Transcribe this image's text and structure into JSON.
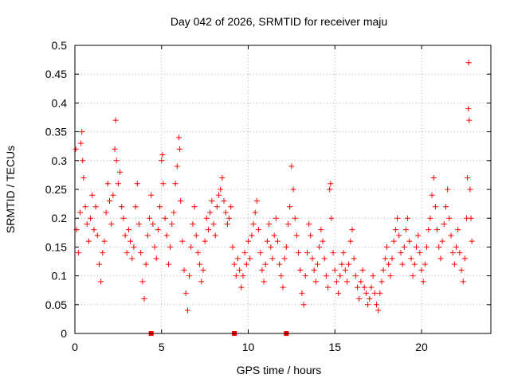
{
  "chart_data": {
    "type": "scatter",
    "title": "Day 042 of 2026, SRMTID for receiver maju",
    "xlabel": "GPS time / hours",
    "ylabel": "SRMTID / TECUs",
    "xlim": [
      0,
      24
    ],
    "ylim": [
      0,
      0.5
    ],
    "xticks": [
      0,
      5,
      10,
      15,
      20
    ],
    "xtick_labels": [
      "0",
      "5",
      "10",
      "15",
      "20"
    ],
    "yticks": [
      0,
      0.05,
      0.1,
      0.15,
      0.2,
      0.25,
      0.3,
      0.35,
      0.4,
      0.45,
      0.5
    ],
    "ytick_labels": [
      "0",
      "0.05",
      "0.1",
      "0.15",
      "0.2",
      "0.25",
      "0.3",
      "0.35",
      "0.4",
      "0.45",
      "0.5"
    ],
    "grid": true,
    "marker": "+",
    "color": "#ff0000",
    "series": [
      {
        "name": "SRMTID",
        "points": [
          [
            0.05,
            0.32
          ],
          [
            0.1,
            0.18
          ],
          [
            0.2,
            0.14
          ],
          [
            0.3,
            0.21
          ],
          [
            0.35,
            0.33
          ],
          [
            0.4,
            0.35
          ],
          [
            0.45,
            0.3
          ],
          [
            0.5,
            0.27
          ],
          [
            0.6,
            0.22
          ],
          [
            0.7,
            0.19
          ],
          [
            0.8,
            0.16
          ],
          [
            0.9,
            0.2
          ],
          [
            1.0,
            0.24
          ],
          [
            1.1,
            0.18
          ],
          [
            1.2,
            0.22
          ],
          [
            1.3,
            0.17
          ],
          [
            1.4,
            0.12
          ],
          [
            1.5,
            0.09
          ],
          [
            1.6,
            0.14
          ],
          [
            1.7,
            0.16
          ],
          [
            1.8,
            0.21
          ],
          [
            1.9,
            0.26
          ],
          [
            2.0,
            0.23
          ],
          [
            2.1,
            0.19
          ],
          [
            2.2,
            0.24
          ],
          [
            2.3,
            0.32
          ],
          [
            2.35,
            0.37
          ],
          [
            2.4,
            0.3
          ],
          [
            2.5,
            0.26
          ],
          [
            2.6,
            0.28
          ],
          [
            2.7,
            0.22
          ],
          [
            2.8,
            0.2
          ],
          [
            2.9,
            0.17
          ],
          [
            3.0,
            0.14
          ],
          [
            3.1,
            0.18
          ],
          [
            3.2,
            0.16
          ],
          [
            3.3,
            0.13
          ],
          [
            3.4,
            0.15
          ],
          [
            3.5,
            0.22
          ],
          [
            3.6,
            0.26
          ],
          [
            3.7,
            0.19
          ],
          [
            3.8,
            0.14
          ],
          [
            3.9,
            0.09
          ],
          [
            4.0,
            0.06
          ],
          [
            4.1,
            0.12
          ],
          [
            4.2,
            0.17
          ],
          [
            4.3,
            0.2
          ],
          [
            4.4,
            0.24
          ],
          [
            4.5,
            0.19
          ],
          [
            4.6,
            0.15
          ],
          [
            4.7,
            0.13
          ],
          [
            4.8,
            0.18
          ],
          [
            4.9,
            0.22
          ],
          [
            5.0,
            0.3
          ],
          [
            5.05,
            0.31
          ],
          [
            5.1,
            0.26
          ],
          [
            5.2,
            0.2
          ],
          [
            5.3,
            0.17
          ],
          [
            5.4,
            0.12
          ],
          [
            5.5,
            0.15
          ],
          [
            5.6,
            0.19
          ],
          [
            5.7,
            0.21
          ],
          [
            5.8,
            0.26
          ],
          [
            5.9,
            0.29
          ],
          [
            6.0,
            0.34
          ],
          [
            6.05,
            0.32
          ],
          [
            6.1,
            0.23
          ],
          [
            6.2,
            0.16
          ],
          [
            6.3,
            0.11
          ],
          [
            6.4,
            0.07
          ],
          [
            6.5,
            0.04
          ],
          [
            6.6,
            0.1
          ],
          [
            6.7,
            0.15
          ],
          [
            6.8,
            0.19
          ],
          [
            6.9,
            0.22
          ],
          [
            7.0,
            0.17
          ],
          [
            7.1,
            0.14
          ],
          [
            7.2,
            0.12
          ],
          [
            7.3,
            0.09
          ],
          [
            7.4,
            0.11
          ],
          [
            7.5,
            0.16
          ],
          [
            7.6,
            0.2
          ],
          [
            7.7,
            0.18
          ],
          [
            7.8,
            0.21
          ],
          [
            7.9,
            0.23
          ],
          [
            8.0,
            0.19
          ],
          [
            8.1,
            0.17
          ],
          [
            8.2,
            0.22
          ],
          [
            8.3,
            0.24
          ],
          [
            8.4,
            0.25
          ],
          [
            8.5,
            0.27
          ],
          [
            8.6,
            0.23
          ],
          [
            8.7,
            0.21
          ],
          [
            8.8,
            0.19
          ],
          [
            8.9,
            0.2
          ],
          [
            9.0,
            0.22
          ],
          [
            9.1,
            0.15
          ],
          [
            9.2,
            0.12
          ],
          [
            9.3,
            0.1
          ],
          [
            9.4,
            0.13
          ],
          [
            9.5,
            0.11
          ],
          [
            9.6,
            0.08
          ],
          [
            9.7,
            0.1
          ],
          [
            9.8,
            0.14
          ],
          [
            9.9,
            0.12
          ],
          [
            10.0,
            0.16
          ],
          [
            10.1,
            0.13
          ],
          [
            10.2,
            0.17
          ],
          [
            10.3,
            0.19
          ],
          [
            10.4,
            0.21
          ],
          [
            10.5,
            0.23
          ],
          [
            10.6,
            0.18
          ],
          [
            10.7,
            0.14
          ],
          [
            10.8,
            0.11
          ],
          [
            10.9,
            0.09
          ],
          [
            11.0,
            0.12
          ],
          [
            11.1,
            0.16
          ],
          [
            11.2,
            0.19
          ],
          [
            11.3,
            0.15
          ],
          [
            11.4,
            0.13
          ],
          [
            11.5,
            0.17
          ],
          [
            11.6,
            0.2
          ],
          [
            11.7,
            0.16
          ],
          [
            11.8,
            0.12
          ],
          [
            11.9,
            0.1
          ],
          [
            12.0,
            0.08
          ],
          [
            12.1,
            0.13
          ],
          [
            12.2,
            0.15
          ],
          [
            12.3,
            0.19
          ],
          [
            12.4,
            0.22
          ],
          [
            12.5,
            0.29
          ],
          [
            12.6,
            0.25
          ],
          [
            12.7,
            0.2
          ],
          [
            12.8,
            0.17
          ],
          [
            12.9,
            0.14
          ],
          [
            13.0,
            0.11
          ],
          [
            13.1,
            0.07
          ],
          [
            13.2,
            0.05
          ],
          [
            13.3,
            0.1
          ],
          [
            13.4,
            0.14
          ],
          [
            13.5,
            0.19
          ],
          [
            13.6,
            0.17
          ],
          [
            13.7,
            0.13
          ],
          [
            13.8,
            0.11
          ],
          [
            13.9,
            0.09
          ],
          [
            14.0,
            0.12
          ],
          [
            14.1,
            0.15
          ],
          [
            14.2,
            0.18
          ],
          [
            14.3,
            0.16
          ],
          [
            14.4,
            0.13
          ],
          [
            14.5,
            0.1
          ],
          [
            14.6,
            0.08
          ],
          [
            14.7,
            0.25
          ],
          [
            14.75,
            0.26
          ],
          [
            14.8,
            0.2
          ],
          [
            14.9,
            0.14
          ],
          [
            15.0,
            0.11
          ],
          [
            15.1,
            0.09
          ],
          [
            15.2,
            0.07
          ],
          [
            15.3,
            0.1
          ],
          [
            15.4,
            0.12
          ],
          [
            15.5,
            0.14
          ],
          [
            15.6,
            0.11
          ],
          [
            15.7,
            0.09
          ],
          [
            15.8,
            0.12
          ],
          [
            15.9,
            0.16
          ],
          [
            16.0,
            0.18
          ],
          [
            16.1,
            0.13
          ],
          [
            16.2,
            0.1
          ],
          [
            16.3,
            0.08
          ],
          [
            16.4,
            0.06
          ],
          [
            16.5,
            0.09
          ],
          [
            16.6,
            0.11
          ],
          [
            16.7,
            0.08
          ],
          [
            16.8,
            0.07
          ],
          [
            16.9,
            0.05
          ],
          [
            17.0,
            0.06
          ],
          [
            17.1,
            0.08
          ],
          [
            17.2,
            0.1
          ],
          [
            17.3,
            0.07
          ],
          [
            17.4,
            0.05
          ],
          [
            17.5,
            0.04
          ],
          [
            17.6,
            0.07
          ],
          [
            17.7,
            0.09
          ],
          [
            17.8,
            0.11
          ],
          [
            17.9,
            0.13
          ],
          [
            18.0,
            0.15
          ],
          [
            18.1,
            0.12
          ],
          [
            18.2,
            0.1
          ],
          [
            18.3,
            0.13
          ],
          [
            18.4,
            0.16
          ],
          [
            18.5,
            0.18
          ],
          [
            18.6,
            0.2
          ],
          [
            18.7,
            0.17
          ],
          [
            18.8,
            0.14
          ],
          [
            18.9,
            0.12
          ],
          [
            19.0,
            0.15
          ],
          [
            19.1,
            0.18
          ],
          [
            19.2,
            0.2
          ],
          [
            19.3,
            0.16
          ],
          [
            19.4,
            0.13
          ],
          [
            19.5,
            0.1
          ],
          [
            19.6,
            0.12
          ],
          [
            19.7,
            0.15
          ],
          [
            19.8,
            0.17
          ],
          [
            19.9,
            0.14
          ],
          [
            20.0,
            0.11
          ],
          [
            20.1,
            0.09
          ],
          [
            20.2,
            0.12
          ],
          [
            20.3,
            0.15
          ],
          [
            20.4,
            0.18
          ],
          [
            20.5,
            0.2
          ],
          [
            20.6,
            0.24
          ],
          [
            20.7,
            0.27
          ],
          [
            20.8,
            0.22
          ],
          [
            20.9,
            0.18
          ],
          [
            21.0,
            0.15
          ],
          [
            21.1,
            0.13
          ],
          [
            21.2,
            0.16
          ],
          [
            21.3,
            0.19
          ],
          [
            21.4,
            0.22
          ],
          [
            21.5,
            0.25
          ],
          [
            21.6,
            0.2
          ],
          [
            21.7,
            0.17
          ],
          [
            21.8,
            0.14
          ],
          [
            21.9,
            0.12
          ],
          [
            22.0,
            0.15
          ],
          [
            22.1,
            0.18
          ],
          [
            22.2,
            0.14
          ],
          [
            22.3,
            0.11
          ],
          [
            22.4,
            0.09
          ],
          [
            22.5,
            0.13
          ],
          [
            22.6,
            0.2
          ],
          [
            22.65,
            0.27
          ],
          [
            22.7,
            0.39
          ],
          [
            22.72,
            0.47
          ],
          [
            22.75,
            0.37
          ],
          [
            22.8,
            0.25
          ],
          [
            22.85,
            0.2
          ],
          [
            22.9,
            0.16
          ]
        ]
      }
    ],
    "markers_on_axis": [
      4.4,
      9.2,
      12.2
    ]
  }
}
